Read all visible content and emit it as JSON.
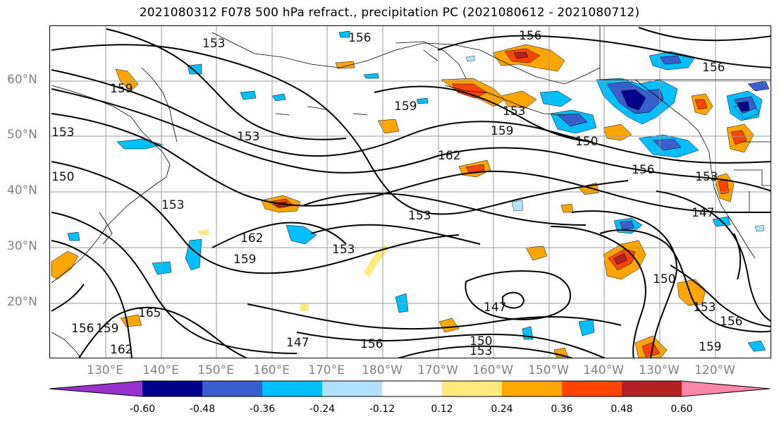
{
  "title": "2021080312 F078 500 hPa refract., precipitation PC (2021080612 - 2021080712)",
  "lat_labels": [
    "60°N",
    "50°N",
    "40°N",
    "30°N",
    "20°N"
  ],
  "lon_labels": [
    "130°E",
    "140°E",
    "150°E",
    "160°E",
    "170°E",
    "180°W",
    "170°W",
    "160°W",
    "150°W",
    "140°W",
    "130°W",
    "120°W"
  ],
  "contour_labels": [
    "153",
    "156",
    "159",
    "159",
    "153",
    "153",
    "150",
    "162",
    "156",
    "153",
    "156",
    "153",
    "147",
    "159",
    "159",
    "162",
    "153",
    "165",
    "147",
    "156",
    "147",
    "150",
    "153",
    "150",
    "153",
    "159",
    "156",
    "162",
    "150",
    "153",
    "159",
    "156",
    "156",
    "153"
  ],
  "colorbar": {
    "ticks": [
      "-0.60",
      "-0.48",
      "-0.36",
      "-0.24",
      "-0.12",
      "0.12",
      "0.24",
      "0.36",
      "0.48",
      "0.60"
    ],
    "colors": [
      "#9932cc",
      "#00008b",
      "#3a5fcd",
      "#00bfff",
      "#b0e2ff",
      "#ffffff",
      "#ffe97f",
      "#ffa500",
      "#ff4500",
      "#b22222",
      "#ff88aa"
    ]
  },
  "icons": {
    "colorbar-left-arrow": "triangle-left",
    "colorbar-right-arrow": "triangle-right"
  }
}
